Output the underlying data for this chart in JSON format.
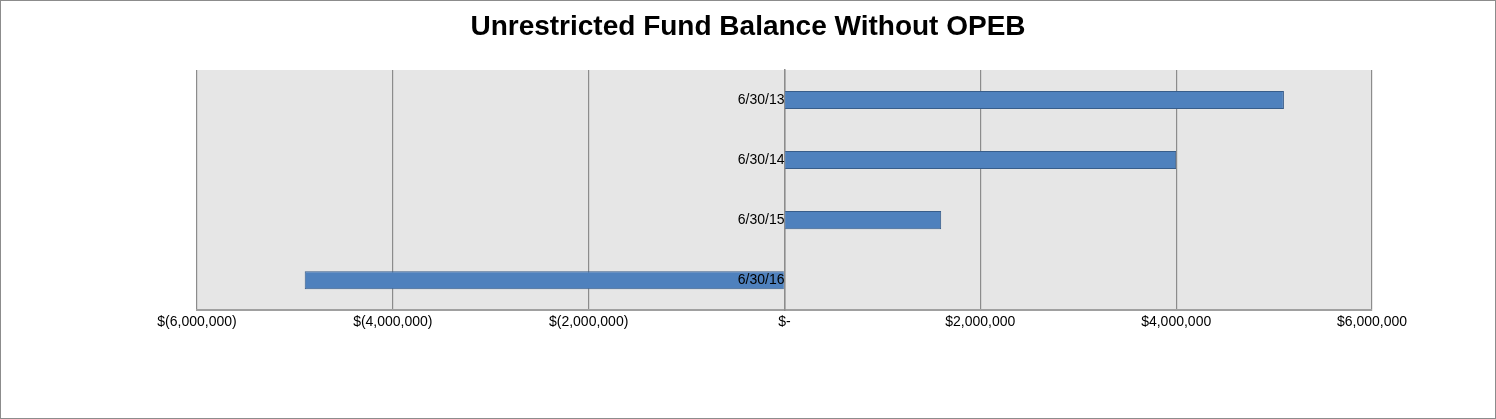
{
  "chart_data": {
    "type": "bar",
    "title": "Unrestricted Fund Balance Without OPEB",
    "orientation": "horizontal",
    "categories": [
      "6/30/13",
      "6/30/14",
      "6/30/15",
      "6/30/16"
    ],
    "values": [
      5100000,
      4000000,
      1600000,
      -4900000
    ],
    "color": "#4f81bd",
    "xlim": [
      -6000000,
      6000000
    ],
    "xticks": [
      {
        "value": -6000000,
        "label": "$(6,000,000)"
      },
      {
        "value": -4000000,
        "label": "$(4,000,000)"
      },
      {
        "value": -2000000,
        "label": "$(2,000,000)"
      },
      {
        "value": 0,
        "label": "$-"
      },
      {
        "value": 2000000,
        "label": "$2,000,000"
      },
      {
        "value": 4000000,
        "label": "$4,000,000"
      },
      {
        "value": 6000000,
        "label": "$6,000,000"
      }
    ],
    "grid": "x"
  }
}
